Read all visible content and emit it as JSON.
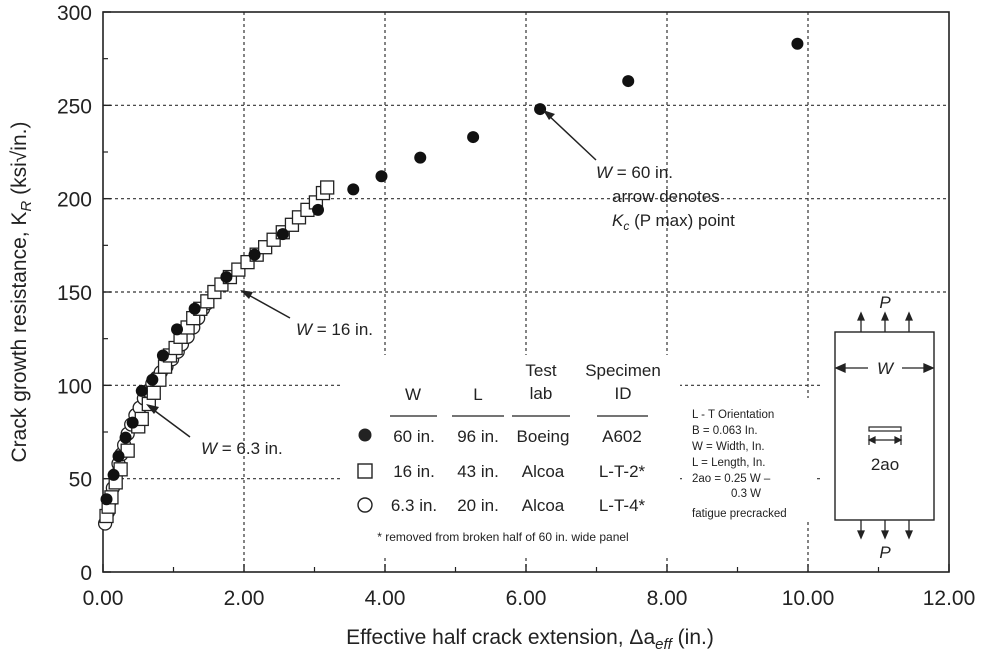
{
  "chart_data": {
    "type": "scatter",
    "xlabel_main": "Effective half crack extension, Δa",
    "xlabel_sub": "eff",
    "xlabel_unit": " (in.)",
    "ylabel_main": "Crack growth resistance, K",
    "ylabel_sub": "R",
    "ylabel_unit": " (ksi√in.)",
    "xlim": [
      0,
      12
    ],
    "ylim": [
      0,
      300
    ],
    "xticks": [
      0,
      2,
      4,
      6,
      8,
      10,
      12
    ],
    "xtick_labels": [
      "0.00",
      "2.00",
      "4.00",
      "6.00",
      "8.00",
      "10.00",
      "12.00"
    ],
    "yticks": [
      0,
      50,
      100,
      150,
      200,
      250,
      300
    ],
    "ytick_labels": [
      "0",
      "50",
      "100",
      "150",
      "200",
      "250",
      "300"
    ],
    "grid": true,
    "series": [
      {
        "name": "60 in.",
        "marker": "filled-circle",
        "points": [
          [
            0.05,
            39
          ],
          [
            0.15,
            52
          ],
          [
            0.22,
            62
          ],
          [
            0.32,
            72
          ],
          [
            0.42,
            80
          ],
          [
            0.55,
            97
          ],
          [
            0.7,
            103
          ],
          [
            0.85,
            116
          ],
          [
            1.05,
            130
          ],
          [
            1.3,
            141
          ],
          [
            1.75,
            158
          ],
          [
            2.15,
            170
          ],
          [
            2.55,
            181
          ],
          [
            3.05,
            194
          ],
          [
            3.55,
            205
          ],
          [
            3.95,
            212
          ],
          [
            4.5,
            222
          ],
          [
            5.25,
            233
          ],
          [
            6.2,
            248
          ],
          [
            7.45,
            263
          ],
          [
            9.85,
            283
          ]
        ]
      },
      {
        "name": "16 in.",
        "marker": "open-square",
        "points": [
          [
            0.05,
            30
          ],
          [
            0.08,
            35
          ],
          [
            0.12,
            40
          ],
          [
            0.18,
            48
          ],
          [
            0.25,
            55
          ],
          [
            0.35,
            65
          ],
          [
            0.5,
            78
          ],
          [
            0.55,
            82
          ],
          [
            0.65,
            90
          ],
          [
            0.72,
            96
          ],
          [
            0.8,
            103
          ],
          [
            0.88,
            110
          ],
          [
            0.95,
            116
          ],
          [
            1.03,
            120
          ],
          [
            1.1,
            126
          ],
          [
            1.2,
            131
          ],
          [
            1.28,
            136
          ],
          [
            1.38,
            141
          ],
          [
            1.48,
            145
          ],
          [
            1.58,
            150
          ],
          [
            1.68,
            154
          ],
          [
            1.8,
            158
          ],
          [
            1.92,
            162
          ],
          [
            2.05,
            166
          ],
          [
            2.18,
            170
          ],
          [
            2.3,
            174
          ],
          [
            2.42,
            178
          ],
          [
            2.55,
            182
          ],
          [
            2.68,
            186
          ],
          [
            2.78,
            190
          ],
          [
            2.9,
            194
          ],
          [
            3.02,
            198
          ],
          [
            3.12,
            203
          ],
          [
            3.18,
            206
          ]
        ]
      },
      {
        "name": "6.3 in.",
        "marker": "open-circle",
        "points": [
          [
            0.03,
            26
          ],
          [
            0.07,
            32
          ],
          [
            0.1,
            38
          ],
          [
            0.14,
            45
          ],
          [
            0.18,
            52
          ],
          [
            0.22,
            58
          ],
          [
            0.26,
            63
          ],
          [
            0.3,
            68
          ],
          [
            0.35,
            74
          ],
          [
            0.4,
            79
          ],
          [
            0.46,
            84
          ],
          [
            0.52,
            88
          ],
          [
            0.58,
            93
          ],
          [
            0.64,
            97
          ],
          [
            0.7,
            101
          ],
          [
            0.76,
            104
          ],
          [
            0.82,
            107
          ],
          [
            0.9,
            110
          ],
          [
            0.98,
            114
          ],
          [
            1.06,
            118
          ],
          [
            1.12,
            122
          ],
          [
            1.2,
            126
          ],
          [
            1.28,
            131
          ],
          [
            1.35,
            136
          ],
          [
            1.42,
            141
          ],
          [
            1.48,
            144
          ]
        ]
      }
    ],
    "annotations": [
      {
        "w_label": "W",
        "value": " = 60 in.",
        "line2": "arrow denotes",
        "kc": "K",
        "kc_sub": "c",
        "kc_rest": " (P max) point"
      },
      {
        "w_label": "W",
        "value": " = 16 in."
      },
      {
        "w_label": "W",
        "value": " = 6.3 in."
      }
    ],
    "legend": {
      "placement": "center-bottom",
      "headers": [
        "W",
        "L",
        "Test",
        "lab",
        "Specimen",
        "ID"
      ],
      "rows": [
        {
          "w": "60 in.",
          "l": "96 in.",
          "lab": "Boeing",
          "id": "A602"
        },
        {
          "w": "16 in.",
          "l": "43 in.",
          "lab": "Alcoa",
          "id": "L-T-2*"
        },
        {
          "w": "6.3 in.",
          "l": "20 in.",
          "lab": "Alcoa",
          "id": "L-T-4*"
        }
      ],
      "footnote": "* removed from broken half of 60 in. wide panel"
    },
    "notes": [
      "L - T Orientation",
      "B = 0.063 In.",
      "W = Width, In.",
      "L = Length, In.",
      "2ao = 0.25 W –",
      "0.3 W",
      "fatigue precracked"
    ],
    "specimen": {
      "p_top": "P",
      "w_label": "W",
      "crack_label": "2ao",
      "p_bottom": "P"
    }
  }
}
